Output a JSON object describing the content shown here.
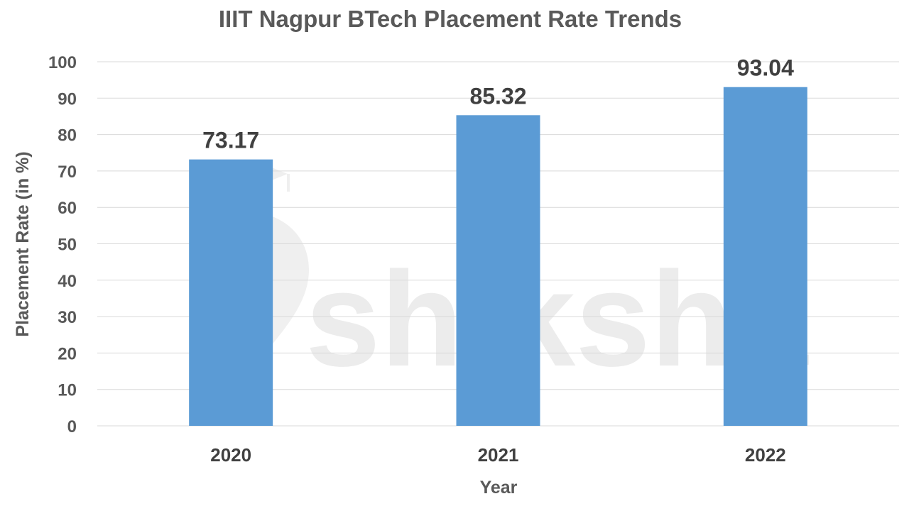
{
  "chart_data": {
    "type": "bar",
    "title": "IIIT Nagpur BTech Placement Rate Trends",
    "xlabel": "Year",
    "ylabel": "Placement Rate (in %)",
    "categories": [
      "2020",
      "2021",
      "2022"
    ],
    "values": [
      73.17,
      85.32,
      93.04
    ],
    "value_labels": [
      "73.17",
      "85.32",
      "93.04"
    ],
    "ylim": [
      0,
      100
    ],
    "yticks": [
      0,
      10,
      20,
      30,
      40,
      50,
      60,
      70,
      80,
      90,
      100
    ],
    "grid": true,
    "legend": "none",
    "bar_color": "#5b9bd5"
  },
  "watermark": {
    "text": "shiksha",
    "icon": "graduation-cap-pen-logo"
  }
}
